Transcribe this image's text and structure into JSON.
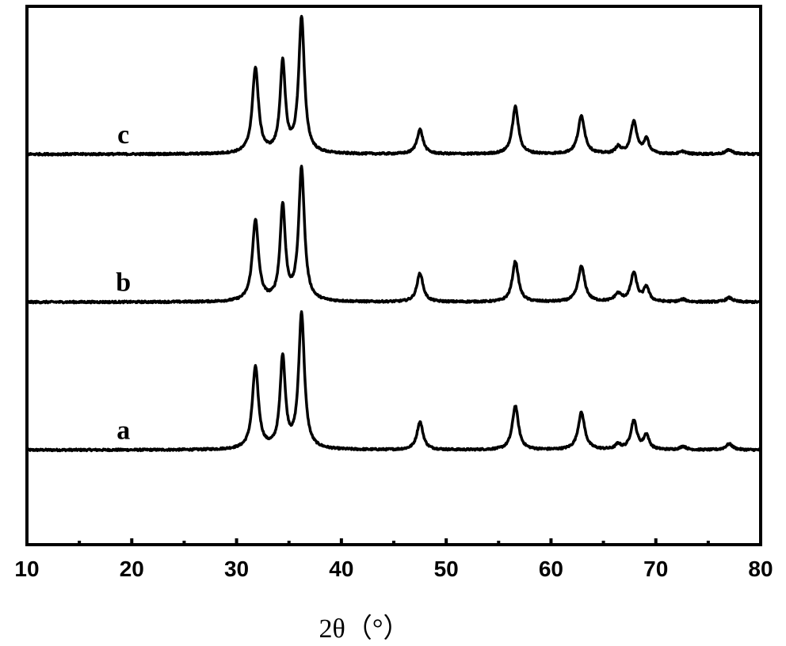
{
  "chart_data": {
    "type": "line",
    "title": "",
    "xlabel": "2θ（°）",
    "ylabel": "",
    "xlim": [
      10,
      80
    ],
    "xticks": [
      "10",
      "20",
      "30",
      "40",
      "50",
      "60",
      "70",
      "80"
    ],
    "x_minor_ticks": [
      15,
      25,
      35,
      45,
      55,
      65,
      75
    ],
    "y_ticks": false,
    "grid": false,
    "legend": "none",
    "stacked_offsets": true,
    "series": [
      {
        "name": "a",
        "baseline": 0,
        "peaks": [
          {
            "x": 31.8,
            "height": 97,
            "width": 0.35
          },
          {
            "x": 34.4,
            "height": 108,
            "width": 0.3
          },
          {
            "x": 36.2,
            "height": 160,
            "width": 0.33
          },
          {
            "x": 47.5,
            "height": 33,
            "width": 0.35
          },
          {
            "x": 56.6,
            "height": 52,
            "width": 0.35
          },
          {
            "x": 62.9,
            "height": 44,
            "width": 0.38
          },
          {
            "x": 66.4,
            "height": 6,
            "width": 0.3
          },
          {
            "x": 67.9,
            "height": 34,
            "width": 0.35
          },
          {
            "x": 69.1,
            "height": 17,
            "width": 0.3
          },
          {
            "x": 72.6,
            "height": 4,
            "width": 0.35
          },
          {
            "x": 77.0,
            "height": 7,
            "width": 0.4
          }
        ]
      },
      {
        "name": "b",
        "baseline": 175,
        "peaks": [
          {
            "x": 31.8,
            "height": 96,
            "width": 0.35
          },
          {
            "x": 34.4,
            "height": 112,
            "width": 0.3
          },
          {
            "x": 36.2,
            "height": 157,
            "width": 0.33
          },
          {
            "x": 47.5,
            "height": 34,
            "width": 0.35
          },
          {
            "x": 56.6,
            "height": 48,
            "width": 0.35
          },
          {
            "x": 62.9,
            "height": 42,
            "width": 0.38
          },
          {
            "x": 66.4,
            "height": 9,
            "width": 0.4
          },
          {
            "x": 67.9,
            "height": 34,
            "width": 0.35
          },
          {
            "x": 69.1,
            "height": 17,
            "width": 0.3
          },
          {
            "x": 72.6,
            "height": 3,
            "width": 0.35
          },
          {
            "x": 77.0,
            "height": 5,
            "width": 0.4
          }
        ]
      },
      {
        "name": "c",
        "baseline": 350,
        "peaks": [
          {
            "x": 31.8,
            "height": 101,
            "width": 0.35
          },
          {
            "x": 34.4,
            "height": 106,
            "width": 0.3
          },
          {
            "x": 36.2,
            "height": 160,
            "width": 0.33
          },
          {
            "x": 47.5,
            "height": 29,
            "width": 0.35
          },
          {
            "x": 56.6,
            "height": 56,
            "width": 0.35
          },
          {
            "x": 62.9,
            "height": 45,
            "width": 0.38
          },
          {
            "x": 66.4,
            "height": 8,
            "width": 0.3
          },
          {
            "x": 67.9,
            "height": 38,
            "width": 0.35
          },
          {
            "x": 69.1,
            "height": 17,
            "width": 0.3
          },
          {
            "x": 72.6,
            "height": 3,
            "width": 0.35
          },
          {
            "x": 77.0,
            "height": 5,
            "width": 0.4
          }
        ]
      }
    ],
    "ylim": [
      -112,
      525
    ]
  }
}
